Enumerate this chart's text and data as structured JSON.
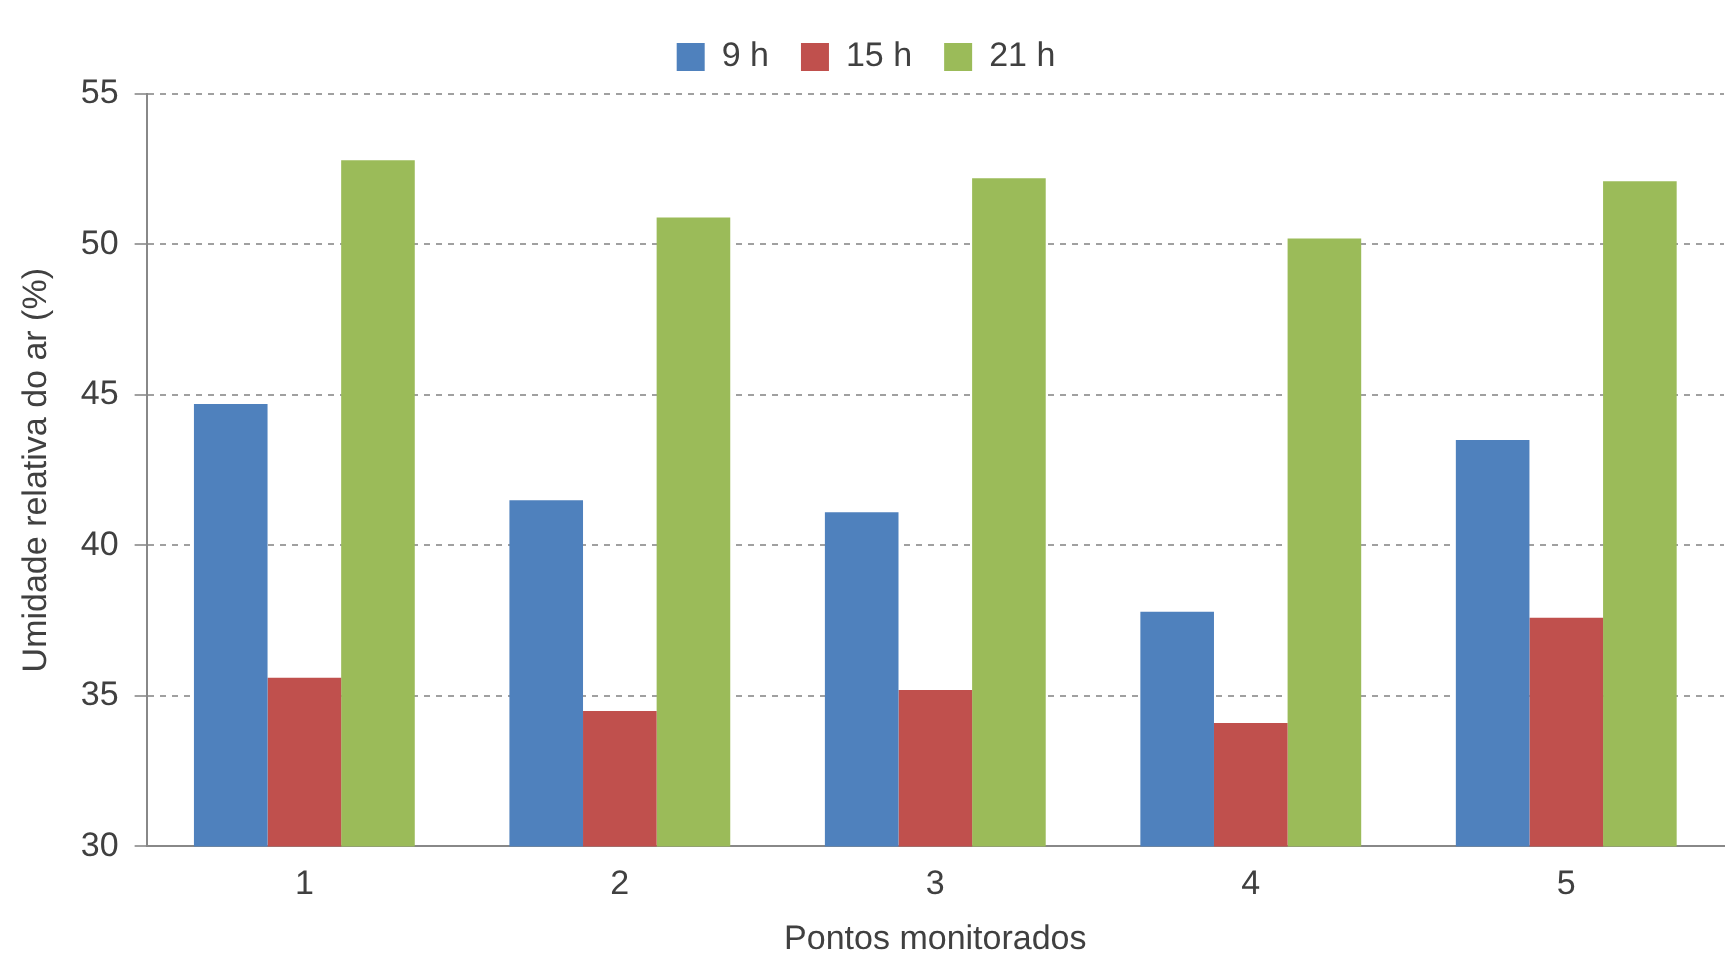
{
  "chart_data": {
    "type": "bar",
    "xlabel": "Pontos monitorados",
    "ylabel": "Umidade relativa do ar (%)",
    "categories": [
      "1",
      "2",
      "3",
      "4",
      "5"
    ],
    "series": [
      {
        "name": "9 h",
        "color": "#4f81bd",
        "values": [
          44.7,
          41.5,
          41.1,
          37.8,
          43.5
        ]
      },
      {
        "name": "15 h",
        "color": "#c0504d",
        "values": [
          35.6,
          34.5,
          35.2,
          34.1,
          37.6
        ]
      },
      {
        "name": "21 h",
        "color": "#9bbb59",
        "values": [
          52.8,
          50.9,
          52.2,
          50.2,
          52.1
        ]
      }
    ],
    "ylim": [
      30,
      55
    ],
    "yticks": [
      30,
      35,
      40,
      45,
      50,
      55
    ],
    "grid": "y",
    "legend": "top"
  }
}
